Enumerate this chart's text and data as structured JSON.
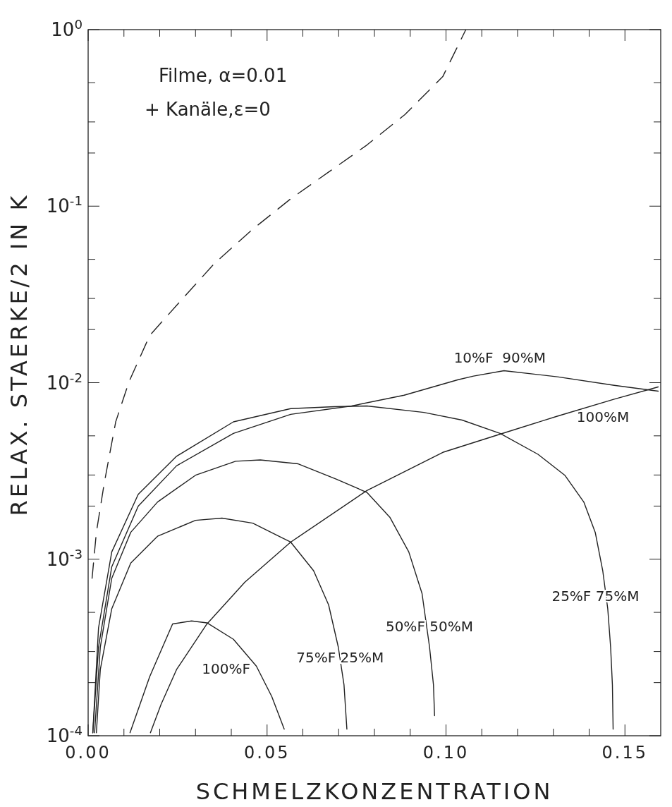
{
  "chart_data": {
    "type": "line",
    "xlabel": "SCHMELZKONZENTRATION",
    "ylabel": "RELAX. STAERKE/2 IN K",
    "log": "y",
    "xlim": [
      0,
      0.16
    ],
    "ylim": [
      0.0001,
      1
    ],
    "xticks": [
      {
        "value": 0,
        "label": "0.00"
      },
      {
        "value": 0.01,
        "label": null
      },
      {
        "value": 0.02,
        "label": null
      },
      {
        "value": 0.03,
        "label": null
      },
      {
        "value": 0.04,
        "label": null
      },
      {
        "value": 0.05,
        "label": "0.05"
      },
      {
        "value": 0.06,
        "label": null
      },
      {
        "value": 0.07,
        "label": null
      },
      {
        "value": 0.08,
        "label": null
      },
      {
        "value": 0.09,
        "label": null
      },
      {
        "value": 0.1,
        "label": "0.10"
      },
      {
        "value": 0.11,
        "label": null
      },
      {
        "value": 0.12,
        "label": null
      },
      {
        "value": 0.13,
        "label": null
      },
      {
        "value": 0.14,
        "label": null
      },
      {
        "value": 0.15,
        "label": "0.15"
      }
    ],
    "yticks": [
      {
        "value": 0.0001,
        "label": "10$^{-4}$"
      },
      {
        "value": 0.0002,
        "label": null
      },
      {
        "value": 0.0003,
        "label": null
      },
      {
        "value": 0.0005,
        "label": null
      },
      {
        "value": 0.001,
        "label": "10$^{-3}$"
      },
      {
        "value": 0.002,
        "label": null
      },
      {
        "value": 0.003,
        "label": null
      },
      {
        "value": 0.005,
        "label": null
      },
      {
        "value": 0.01,
        "label": "10$^{-2}$"
      },
      {
        "value": 0.02,
        "label": null
      },
      {
        "value": 0.03,
        "label": null
      },
      {
        "value": 0.05,
        "label": null
      },
      {
        "value": 0.1,
        "label": "10$^{-1}$"
      },
      {
        "value": 0.2,
        "label": null
      },
      {
        "value": 0.3,
        "label": null
      },
      {
        "value": 0.5,
        "label": null
      },
      {
        "value": 1,
        "label": "10$^{0}$"
      }
    ],
    "grid": false,
    "series": [
      {
        "name": "100%F",
        "color": "#222222",
        "x": [
          0.0117,
          0.0172,
          0.0236,
          0.0289,
          0.0332,
          0.0406,
          0.047,
          0.0513,
          0.0548
        ],
        "values": [
          0.000104,
          0.000216,
          0.00043,
          0.000447,
          0.000436,
          0.000352,
          0.000248,
          0.000167,
          0.000109
        ]
      },
      {
        "name": "75%F 25%M",
        "color": "#222222",
        "x": [
          0.0023,
          0.0034,
          0.0066,
          0.0119,
          0.0194,
          0.03,
          0.0374,
          0.046,
          0.0566,
          0.063,
          0.0672,
          0.0699,
          0.0715,
          0.0723
        ],
        "values": [
          0.000104,
          0.000237,
          0.000524,
          0.000951,
          0.00135,
          0.00166,
          0.00171,
          0.0016,
          0.00125,
          0.000861,
          0.000551,
          0.000318,
          0.000194,
          0.000109
        ]
      },
      {
        "name": "50%F 50%M",
        "color": "#222222",
        "x": [
          0.0018,
          0.0034,
          0.0066,
          0.0119,
          0.0194,
          0.03,
          0.0412,
          0.0481,
          0.0587,
          0.0694,
          0.0779,
          0.0843,
          0.0896,
          0.0933,
          0.0954,
          0.0965,
          0.0968
        ],
        "values": [
          0.000104,
          0.000318,
          0.00078,
          0.00142,
          0.00211,
          0.00299,
          0.00359,
          0.00365,
          0.00347,
          0.00284,
          0.00239,
          0.00173,
          0.0011,
          0.00064,
          0.000318,
          0.000194,
          0.00013
        ]
      },
      {
        "name": "25%F 75%M",
        "color": "#222222",
        "x": [
          0.0013,
          0.0029,
          0.0066,
          0.014,
          0.0247,
          0.0406,
          0.0566,
          0.0688,
          0.0779,
          0.0938,
          0.1045,
          0.1151,
          0.1257,
          0.1332,
          0.1385,
          0.1417,
          0.1438,
          0.1452,
          0.146,
          0.1465,
          0.1467
        ],
        "values": [
          0.000104,
          0.000408,
          0.0011,
          0.00233,
          0.00383,
          0.006,
          0.00713,
          0.00731,
          0.00738,
          0.00679,
          0.00614,
          0.00516,
          0.00393,
          0.00299,
          0.00211,
          0.00142,
          0.000861,
          0.000524,
          0.000318,
          0.000194,
          0.000109
        ]
      },
      {
        "name": "10%F  90%M",
        "color": "#222222",
        "x": [
          0.0013,
          0.0029,
          0.0066,
          0.014,
          0.0247,
          0.0406,
          0.0566,
          0.0736,
          0.0883,
          0.1034,
          0.1077,
          0.1162,
          0.1311,
          0.147,
          0.1593
        ],
        "values": [
          0.000104,
          0.000318,
          0.000906,
          0.002,
          0.00338,
          0.00516,
          0.00662,
          0.00738,
          0.00849,
          0.0104,
          0.0109,
          0.0117,
          0.0108,
          0.00966,
          0.00895
        ]
      },
      {
        "name": "100%M",
        "color": "#222222",
        "x": [
          0.0174,
          0.0204,
          0.0247,
          0.0332,
          0.0438,
          0.0566,
          0.0779,
          0.0991,
          0.1151,
          0.1311,
          0.147,
          0.1593
        ],
        "values": [
          0.000104,
          0.000151,
          0.000237,
          0.00043,
          0.000741,
          0.00125,
          0.00245,
          0.00403,
          0.00511,
          0.00646,
          0.00807,
          0.00946
        ]
      },
      {
        "color": "#222222",
        "line_style": "dashed",
        "x": [
          0.0011,
          0.0023,
          0.0045,
          0.0077,
          0.0114,
          0.0172,
          0.0247,
          0.0353,
          0.046,
          0.0566,
          0.0672,
          0.0779,
          0.0885,
          0.0991,
          0.1055
        ],
        "values": [
          0.00078,
          0.00142,
          0.0027,
          0.006,
          0.0101,
          0.0185,
          0.0274,
          0.0474,
          0.0741,
          0.11,
          0.156,
          0.222,
          0.33,
          0.542,
          0.995
        ]
      }
    ],
    "annotations": [
      "Filme, α=0.01",
      "+ Kanäle,ε=0"
    ]
  }
}
